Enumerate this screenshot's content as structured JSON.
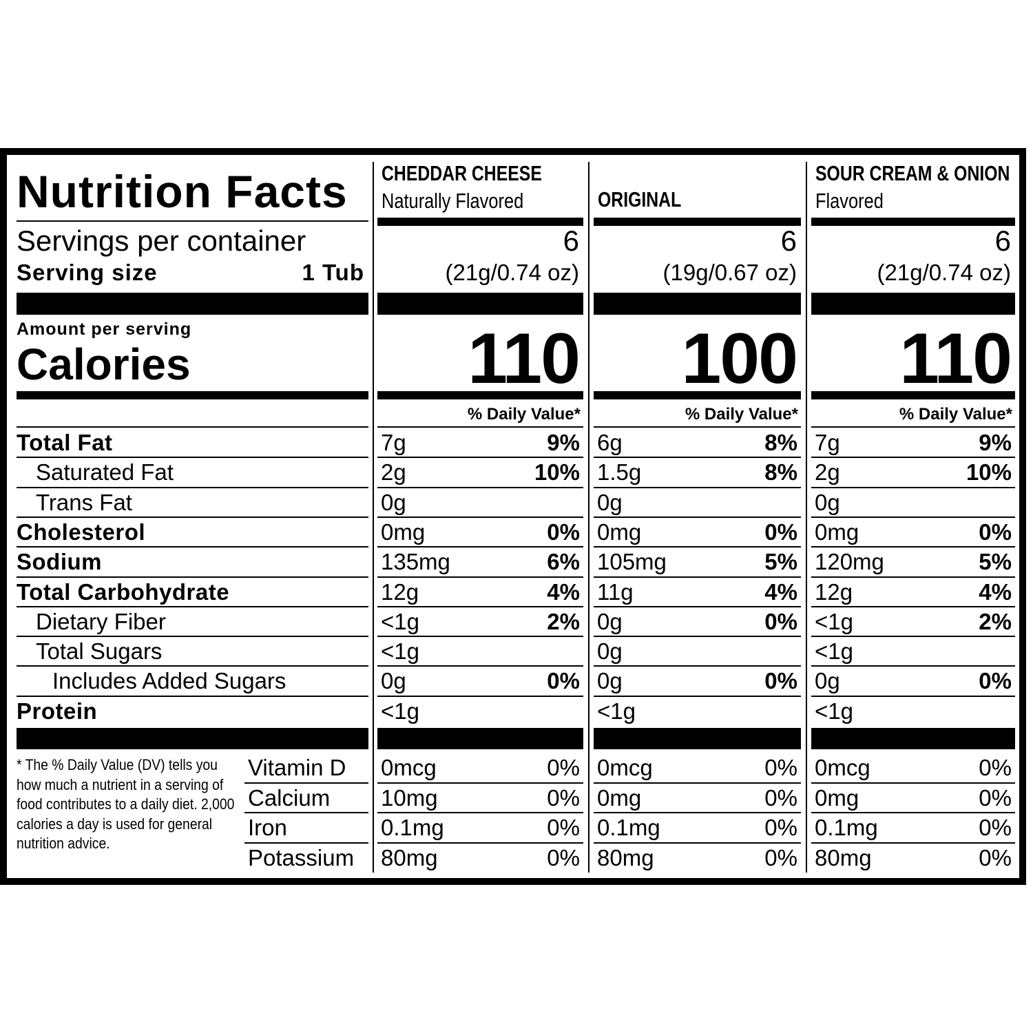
{
  "title": "Nutrition Facts",
  "servings_label": "Servings per container",
  "serving_size_label": "Serving size",
  "serving_size": "1 Tub",
  "amount_label": "Amount per serving",
  "calories_label": "Calories",
  "dv_header": "% Daily Value*",
  "nutrients": [
    {
      "label": "Total Fat",
      "style": "bold"
    },
    {
      "label": "Saturated Fat",
      "style": "sub"
    },
    {
      "label": "Trans Fat",
      "style": "sub"
    },
    {
      "label": "Cholesterol",
      "style": "bold"
    },
    {
      "label": "Sodium",
      "style": "bold"
    },
    {
      "label": "Total Carbohydrate",
      "style": "bold"
    },
    {
      "label": "Dietary Fiber",
      "style": "sub"
    },
    {
      "label": "Total Sugars",
      "style": "sub"
    },
    {
      "label": "Includes Added Sugars",
      "style": "subsub"
    },
    {
      "label": "Protein",
      "style": "bold"
    }
  ],
  "vitamins": [
    "Vitamin D",
    "Calcium",
    "Iron",
    "Potassium"
  ],
  "footnote": "* The % Daily Value (DV) tells you how much a nutrient in a serving of food contributes to a daily diet. 2,000 calories a day is used for general nutrition advice.",
  "products": [
    {
      "name": "CHEDDAR CHEESE",
      "subtitle": "Naturally Flavored",
      "servings": 6,
      "serving_weight": "(21g/0.74 oz)",
      "calories": 110,
      "nutrients": [
        {
          "amount": "7g",
          "dv": "9%"
        },
        {
          "amount": "2g",
          "dv": "10%"
        },
        {
          "amount": "0g"
        },
        {
          "amount": "0mg",
          "dv": "0%"
        },
        {
          "amount": "135mg",
          "dv": "6%"
        },
        {
          "amount": "12g",
          "dv": "4%"
        },
        {
          "amount": "<1g",
          "dv": "2%"
        },
        {
          "amount": "<1g"
        },
        {
          "amount": "0g",
          "dv": "0%"
        },
        {
          "amount": "<1g"
        }
      ],
      "vitamins": [
        {
          "amount": "0mcg",
          "dv": "0%"
        },
        {
          "amount": "10mg",
          "dv": "0%"
        },
        {
          "amount": "0.1mg",
          "dv": "0%"
        },
        {
          "amount": "80mg",
          "dv": "0%"
        }
      ]
    },
    {
      "name": "ORIGINAL",
      "servings": 6,
      "serving_weight": "(19g/0.67 oz)",
      "calories": 100,
      "nutrients": [
        {
          "amount": "6g",
          "dv": "8%"
        },
        {
          "amount": "1.5g",
          "dv": "8%"
        },
        {
          "amount": "0g"
        },
        {
          "amount": "0mg",
          "dv": "0%"
        },
        {
          "amount": "105mg",
          "dv": "5%"
        },
        {
          "amount": "11g",
          "dv": "4%"
        },
        {
          "amount": "0g",
          "dv": "0%"
        },
        {
          "amount": "0g"
        },
        {
          "amount": "0g",
          "dv": "0%"
        },
        {
          "amount": "<1g"
        }
      ],
      "vitamins": [
        {
          "amount": "0mcg",
          "dv": "0%"
        },
        {
          "amount": "0mg",
          "dv": "0%"
        },
        {
          "amount": "0.1mg",
          "dv": "0%"
        },
        {
          "amount": "80mg",
          "dv": "0%"
        }
      ]
    },
    {
      "name": "SOUR CREAM & ONION",
      "subtitle": "Flavored",
      "servings": 6,
      "serving_weight": "(21g/0.74 oz)",
      "calories": 110,
      "nutrients": [
        {
          "amount": "7g",
          "dv": "9%"
        },
        {
          "amount": "2g",
          "dv": "10%"
        },
        {
          "amount": "0g"
        },
        {
          "amount": "0mg",
          "dv": "0%"
        },
        {
          "amount": "120mg",
          "dv": "5%"
        },
        {
          "amount": "12g",
          "dv": "4%"
        },
        {
          "amount": "<1g",
          "dv": "2%"
        },
        {
          "amount": "<1g"
        },
        {
          "amount": "0g",
          "dv": "0%"
        },
        {
          "amount": "<1g"
        }
      ],
      "vitamins": [
        {
          "amount": "0mcg",
          "dv": "0%"
        },
        {
          "amount": "0mg",
          "dv": "0%"
        },
        {
          "amount": "0.1mg",
          "dv": "0%"
        },
        {
          "amount": "80mg",
          "dv": "0%"
        }
      ]
    }
  ]
}
